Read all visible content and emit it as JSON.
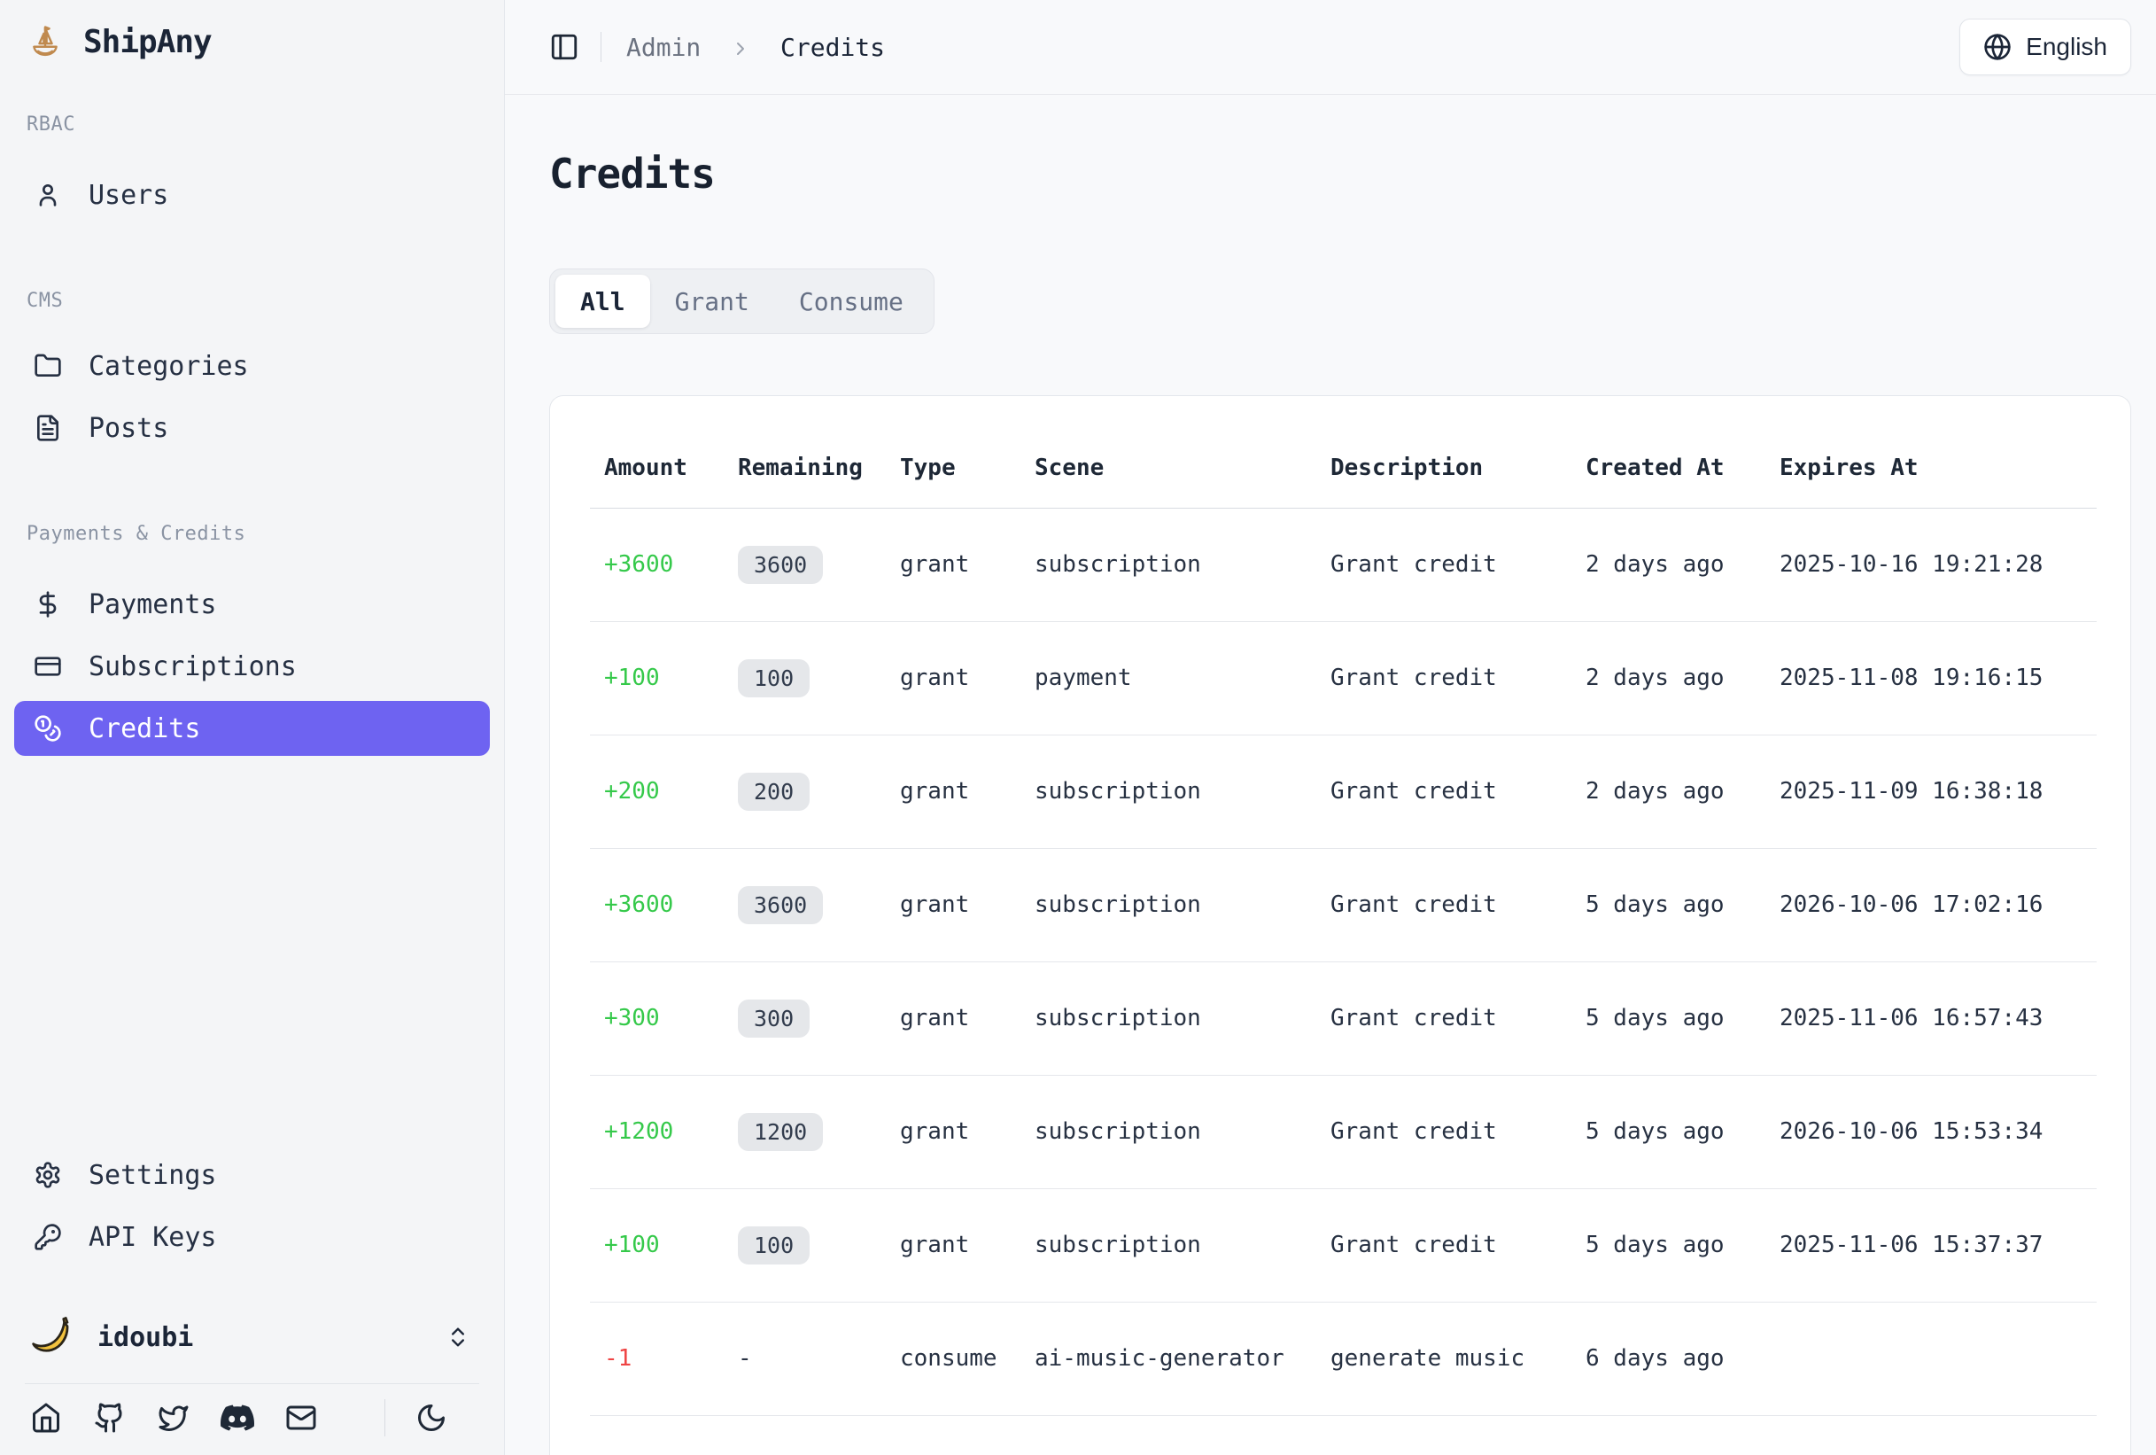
{
  "app": {
    "name": "ShipAny",
    "logo_icon": "sailboat-icon"
  },
  "header": {
    "breadcrumb": {
      "section": "Admin",
      "page": "Credits"
    },
    "language_button": {
      "label": "English",
      "icon": "globe-icon"
    }
  },
  "sidebar": {
    "sections": [
      {
        "label": "RBAC",
        "items": [
          {
            "label": "Users",
            "icon": "user-icon",
            "active": false
          }
        ]
      },
      {
        "label": "CMS",
        "items": [
          {
            "label": "Categories",
            "icon": "folder-icon",
            "active": false
          },
          {
            "label": "Posts",
            "icon": "file-text-icon",
            "active": false
          }
        ]
      },
      {
        "label": "Payments & Credits",
        "items": [
          {
            "label": "Payments",
            "icon": "dollar-icon",
            "active": false
          },
          {
            "label": "Subscriptions",
            "icon": "credit-card-icon",
            "active": false
          },
          {
            "label": "Credits",
            "icon": "coins-icon",
            "active": true
          }
        ]
      }
    ],
    "secondary_items": [
      {
        "label": "Settings",
        "icon": "gear-icon"
      },
      {
        "label": "API Keys",
        "icon": "key-icon"
      }
    ],
    "user": {
      "name": "idoubi",
      "avatar": "banana-avatar"
    },
    "social_icons": [
      "home-icon",
      "github-icon",
      "twitter-icon",
      "discord-icon",
      "mail-icon"
    ],
    "theme_toggle_icon": "moon-icon"
  },
  "main": {
    "title": "Credits",
    "tabs": [
      {
        "label": "All",
        "active": true
      },
      {
        "label": "Grant",
        "active": false
      },
      {
        "label": "Consume",
        "active": false
      }
    ],
    "table": {
      "columns": [
        "Amount",
        "Remaining",
        "Type",
        "Scene",
        "Description",
        "Created At",
        "Expires At"
      ],
      "rows": [
        {
          "amount": "+3600",
          "remaining": "3600",
          "type": "grant",
          "scene": "subscription",
          "description": "Grant credit",
          "created_at": "2 days ago",
          "expires_at": "2025-10-16 19:21:28"
        },
        {
          "amount": "+100",
          "remaining": "100",
          "type": "grant",
          "scene": "payment",
          "description": "Grant credit",
          "created_at": "2 days ago",
          "expires_at": "2025-11-08 19:16:15"
        },
        {
          "amount": "+200",
          "remaining": "200",
          "type": "grant",
          "scene": "subscription",
          "description": "Grant credit",
          "created_at": "2 days ago",
          "expires_at": "2025-11-09 16:38:18"
        },
        {
          "amount": "+3600",
          "remaining": "3600",
          "type": "grant",
          "scene": "subscription",
          "description": "Grant credit",
          "created_at": "5 days ago",
          "expires_at": "2026-10-06 17:02:16"
        },
        {
          "amount": "+300",
          "remaining": "300",
          "type": "grant",
          "scene": "subscription",
          "description": "Grant credit",
          "created_at": "5 days ago",
          "expires_at": "2025-11-06 16:57:43"
        },
        {
          "amount": "+1200",
          "remaining": "1200",
          "type": "grant",
          "scene": "subscription",
          "description": "Grant credit",
          "created_at": "5 days ago",
          "expires_at": "2026-10-06 15:53:34"
        },
        {
          "amount": "+100",
          "remaining": "100",
          "type": "grant",
          "scene": "subscription",
          "description": "Grant credit",
          "created_at": "5 days ago",
          "expires_at": "2025-11-06 15:37:37"
        },
        {
          "amount": "-1",
          "remaining": "-",
          "type": "consume",
          "scene": "ai-music-generator",
          "description": "generate music",
          "created_at": "6 days ago",
          "expires_at": ""
        }
      ]
    }
  },
  "colors": {
    "accent": "#6e63f1",
    "positive": "#35c94a",
    "negative": "#ef4444",
    "logo": "#c08a4f"
  }
}
